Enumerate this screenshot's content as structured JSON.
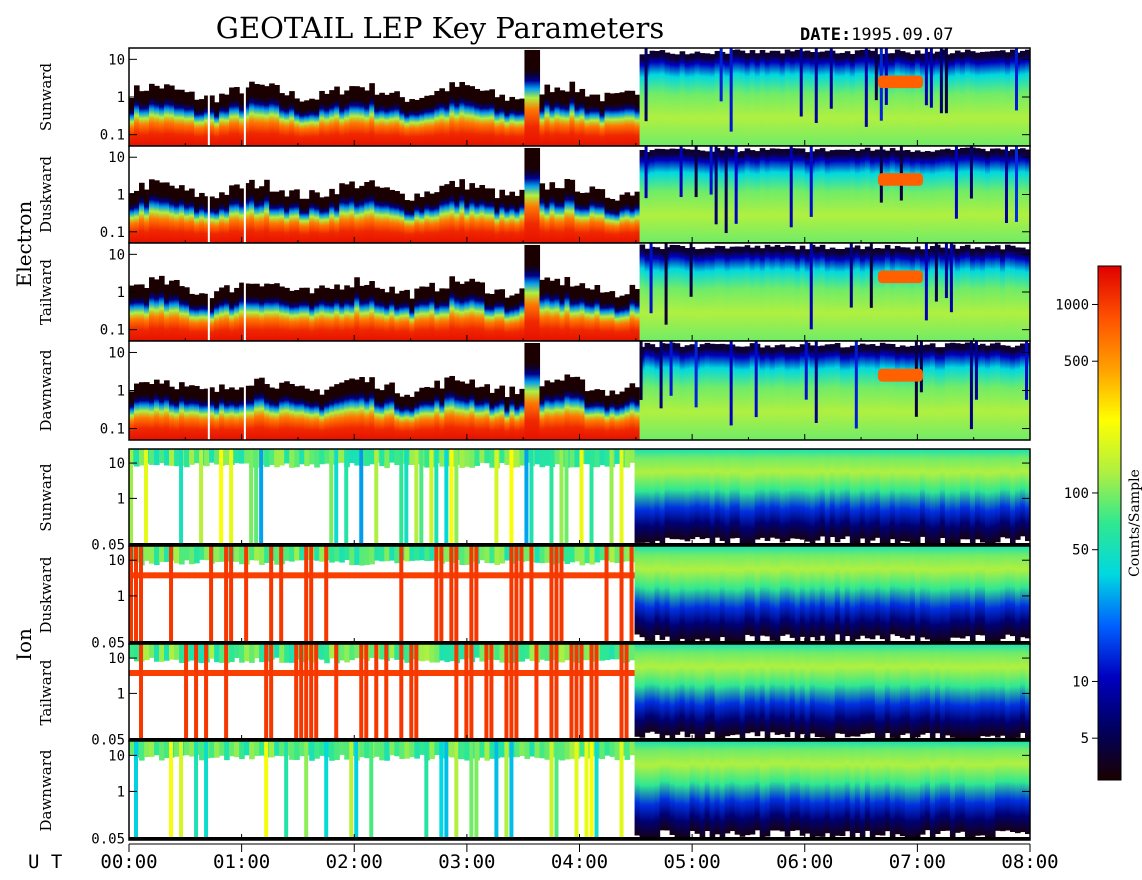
{
  "title": "GEOTAIL LEP Key Parameters",
  "date": {
    "label": "DATE:",
    "value": "1995.09.07"
  },
  "time_axis_label": "U T",
  "colorbar": {
    "title": "Counts/Sample",
    "ticks": [
      {
        "label": "1000",
        "value": 1000
      },
      {
        "label": "500",
        "value": 500
      },
      {
        "label": "100",
        "value": 100
      },
      {
        "label": "50",
        "value": 50
      },
      {
        "label": "10",
        "value": 10
      },
      {
        "label": "5",
        "value": 5
      }
    ],
    "range": [
      3,
      1600
    ],
    "scale": "log",
    "colormap": [
      "#1a0000",
      "#000060",
      "#0000c0",
      "#0060ff",
      "#00d8e0",
      "#30e890",
      "#b0f040",
      "#ffff00",
      "#ffa000",
      "#ff5000",
      "#e00000"
    ]
  },
  "chart_data": {
    "type": "heatmap",
    "x_axis": {
      "ticks": [
        "00:00",
        "01:00",
        "02:00",
        "03:00",
        "04:00",
        "05:00",
        "06:00",
        "07:00",
        "08:00"
      ],
      "range_hours": [
        0,
        8
      ]
    },
    "groups": [
      {
        "name": "Electron",
        "y_range": [
          0.05,
          20
        ],
        "y_ticks": [
          {
            "label": "10",
            "value": 10
          },
          {
            "label": "1",
            "value": 1
          },
          {
            "label": "0.1",
            "value": 0.1
          }
        ],
        "panels": [
          "Sunward",
          "Duskward",
          "Tailward",
          "Dawnward"
        ]
      },
      {
        "name": "Ion",
        "y_range": [
          0.045,
          25
        ],
        "y_ticks": [
          {
            "label": "10",
            "value": 10
          },
          {
            "label": "1",
            "value": 1
          },
          {
            "label": "0.05",
            "value": 0.05
          }
        ],
        "panels": [
          "Sunward",
          "Duskward",
          "Tailward",
          "Dawnward"
        ]
      }
    ]
  }
}
